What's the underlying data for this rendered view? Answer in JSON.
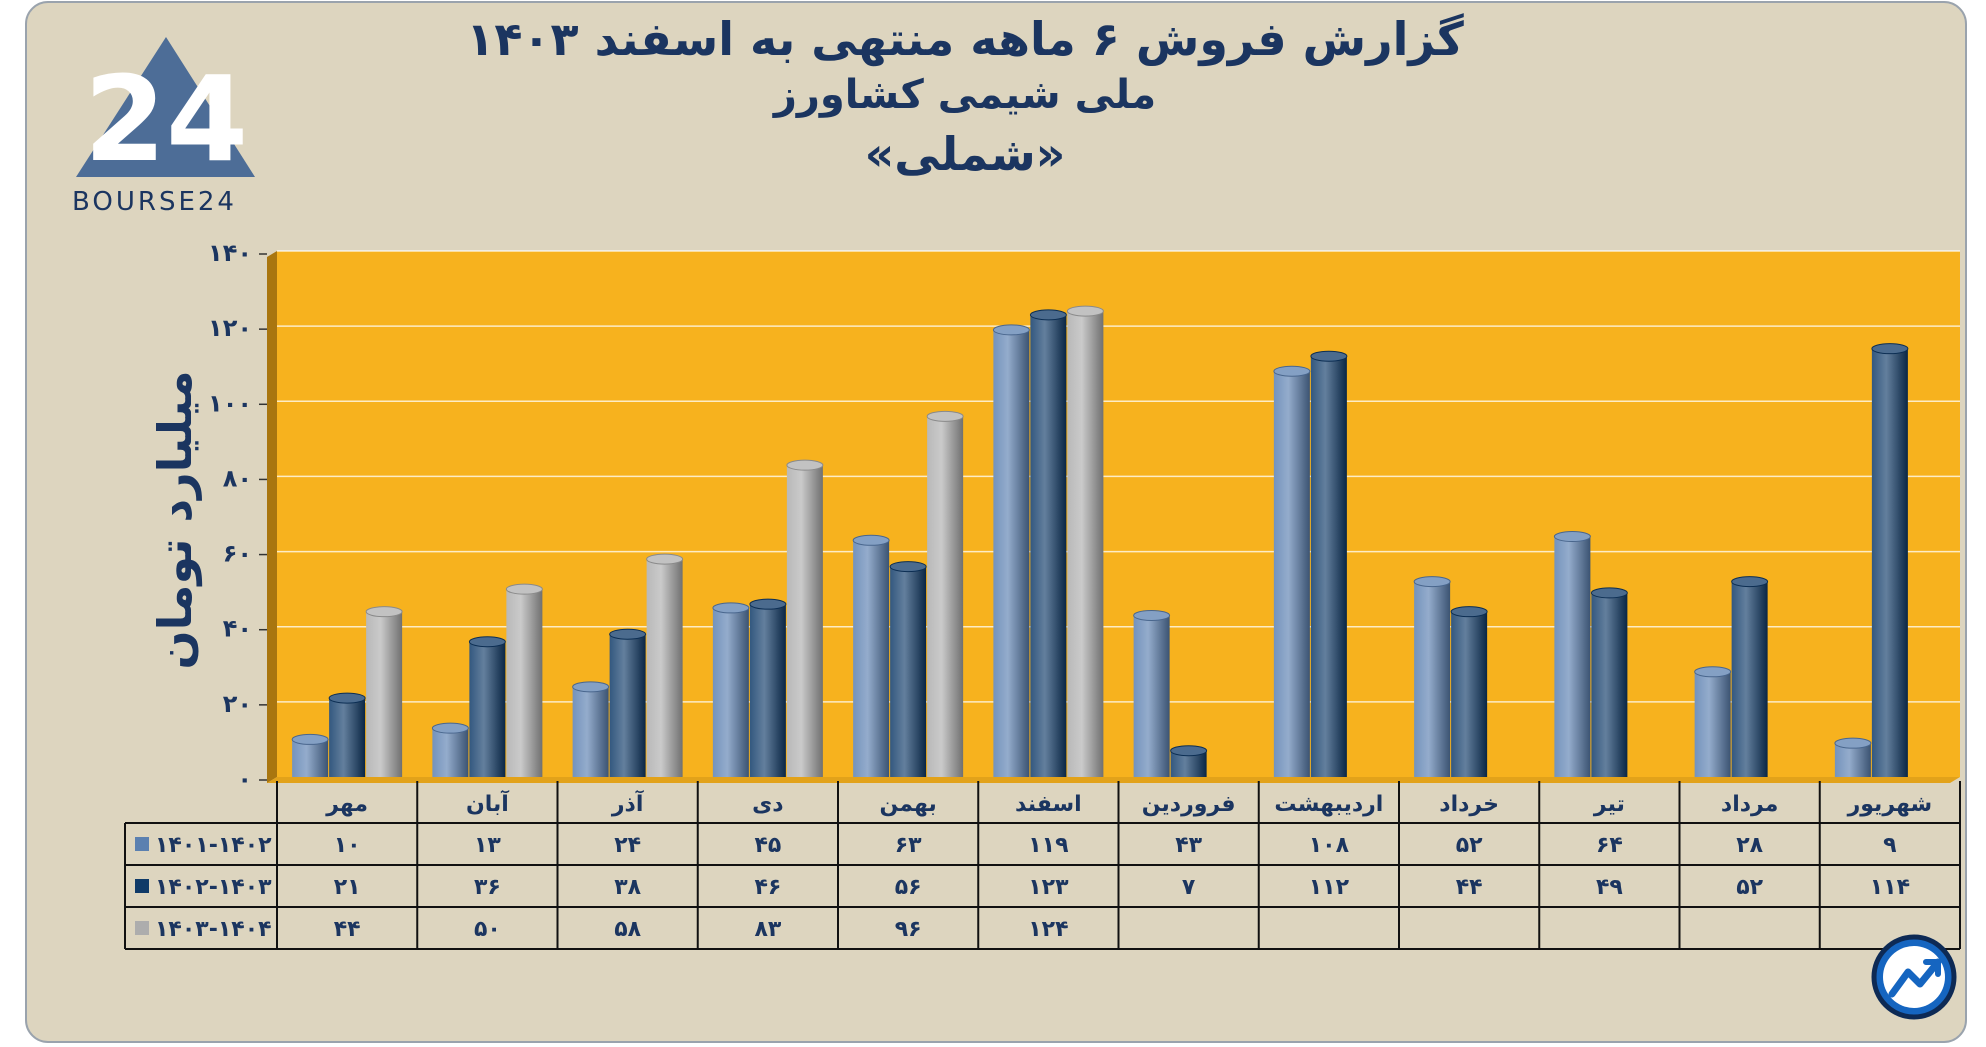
{
  "title": {
    "line1": "گزارش  فروش ۶ ماهه منتهی به اسفند ۱۴۰۳",
    "line2": "ملی شیمی کشاورز",
    "line3": "«شملی»"
  },
  "logo": {
    "text": "BOURSE24",
    "icon": "bourse24-logo",
    "mark": "24"
  },
  "corner_icon": "trend-arrow-icon",
  "colors": {
    "page_bg": "#ddd5bf",
    "plot_bg": "#f7b21e",
    "series1": "#5b80b0",
    "series2": "#0f3a68",
    "series3": "#adadad",
    "text": "#1b3560"
  },
  "chart_data": {
    "type": "bar",
    "ylabel": "میلیارد تومان",
    "ylim": [
      0,
      140
    ],
    "yticks": [
      "۰",
      "۲۰",
      "۴۰",
      "۶۰",
      "۸۰",
      "۱۰۰",
      "۱۲۰",
      "۱۴۰"
    ],
    "grid": true,
    "categories": [
      "مهر",
      "آبان",
      "آذر",
      "دی",
      "بهمن",
      "اسفند",
      "فروردین",
      "اردیبهشت",
      "خرداد",
      "تیر",
      "مرداد",
      "شهریور"
    ],
    "series": [
      {
        "name": "۱۴۰۱-۱۴۰۲",
        "values": [
          10,
          13,
          24,
          45,
          63,
          119,
          43,
          108,
          52,
          64,
          28,
          9
        ],
        "labels": [
          "۱۰",
          "۱۳",
          "۲۴",
          "۴۵",
          "۶۳",
          "۱۱۹",
          "۴۳",
          "۱۰۸",
          "۵۲",
          "۶۴",
          "۲۸",
          "۹"
        ]
      },
      {
        "name": "۱۴۰۲-۱۴۰۳",
        "values": [
          21,
          36,
          38,
          46,
          56,
          123,
          7,
          112,
          44,
          49,
          52,
          114
        ],
        "labels": [
          "۲۱",
          "۳۶",
          "۳۸",
          "۴۶",
          "۵۶",
          "۱۲۳",
          "۷",
          "۱۱۲",
          "۴۴",
          "۴۹",
          "۵۲",
          "۱۱۴"
        ]
      },
      {
        "name": "۱۴۰۳-۱۴۰۴",
        "values": [
          44,
          50,
          58,
          83,
          96,
          124,
          null,
          null,
          null,
          null,
          null,
          null
        ],
        "labels": [
          "۴۴",
          "۵۰",
          "۵۸",
          "۸۳",
          "۹۶",
          "۱۲۴",
          "",
          "",
          "",
          "",
          "",
          ""
        ]
      }
    ]
  }
}
